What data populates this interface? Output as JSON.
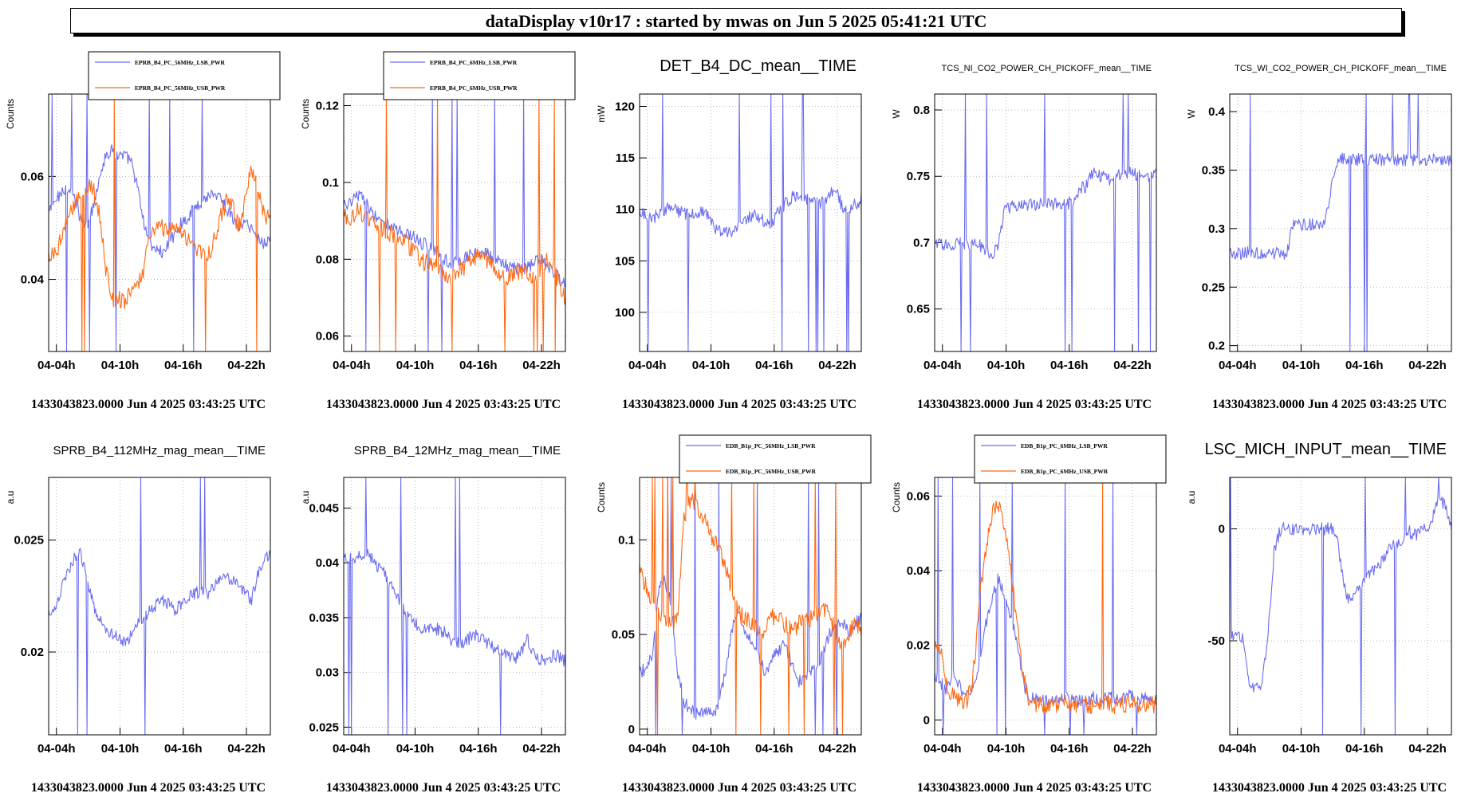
{
  "header": {
    "title": "dataDisplay v10r17 : started by mwas on Jun  5 2025 05:41:21 UTC"
  },
  "colors": {
    "blue": "#6a6cf0",
    "orange": "#ff6a12",
    "grid": "#a8a8a8",
    "axis": "#000000"
  },
  "chart_data": [
    {
      "type": "line",
      "title": "",
      "ylabel": "Counts",
      "legend": [
        "EPRB_B4_PC_56MHz_LSB_PWR",
        "EPRB_B4_PC_56MHz_USB_PWR"
      ],
      "xticks": [
        "04-04h",
        "04-10h",
        "04-16h",
        "04-22h"
      ],
      "yticks": [
        0.04,
        0.06
      ],
      "ytick_labels": [
        "0.04",
        "0.06"
      ],
      "ylim": [
        0.026,
        0.076
      ],
      "footer": "1433043823.0000 Jun 4 2025 03:43:25 UTC",
      "series": [
        {
          "color": "blue",
          "values": [
            0.053,
            0.055,
            0.057,
            0.058,
            0.056,
            0.052,
            0.05,
            0.054,
            0.06,
            0.064,
            0.065,
            0.064,
            0.064,
            0.063,
            0.058,
            0.051,
            0.047,
            0.046,
            0.045,
            0.047,
            0.049,
            0.051,
            0.052,
            0.054,
            0.055,
            0.056,
            0.057,
            0.056,
            0.054,
            0.052,
            0.05,
            0.051,
            0.05,
            0.048,
            0.047,
            0.048
          ]
        },
        {
          "color": "orange",
          "values": [
            0.045,
            0.045,
            0.048,
            0.052,
            0.054,
            0.056,
            0.058,
            0.058,
            0.053,
            0.042,
            0.036,
            0.036,
            0.036,
            0.037,
            0.039,
            0.042,
            0.048,
            0.051,
            0.05,
            0.05,
            0.05,
            0.049,
            0.048,
            0.046,
            0.045,
            0.044,
            0.047,
            0.052,
            0.055,
            0.054,
            0.05,
            0.055,
            0.062,
            0.058,
            0.053,
            0.051
          ]
        }
      ]
    },
    {
      "type": "line",
      "title": "",
      "ylabel": "Counts",
      "legend": [
        "EPRB_B4_PC_6MHz_LSB_PWR",
        "EPRB_B4_PC_6MHz_USB_PWR"
      ],
      "xticks": [
        "04-04h",
        "04-10h",
        "04-16h",
        "04-22h"
      ],
      "yticks": [
        0.06,
        0.08,
        0.1,
        0.12
      ],
      "ytick_labels": [
        "0.06",
        "0.08",
        "0.1",
        "0.12"
      ],
      "ylim": [
        0.056,
        0.123
      ],
      "footer": "1433043823.0000 Jun 4 2025 03:43:25 UTC",
      "series": [
        {
          "color": "blue",
          "values": [
            0.094,
            0.095,
            0.097,
            0.096,
            0.093,
            0.091,
            0.09,
            0.089,
            0.088,
            0.087,
            0.087,
            0.086,
            0.084,
            0.084,
            0.083,
            0.082,
            0.08,
            0.079,
            0.079,
            0.08,
            0.081,
            0.082,
            0.082,
            0.081,
            0.08,
            0.079,
            0.078,
            0.078,
            0.077,
            0.078,
            0.079,
            0.08,
            0.079,
            0.077,
            0.075,
            0.073
          ]
        },
        {
          "color": "orange",
          "values": [
            0.092,
            0.09,
            0.093,
            0.092,
            0.09,
            0.089,
            0.088,
            0.087,
            0.086,
            0.085,
            0.084,
            0.082,
            0.08,
            0.079,
            0.079,
            0.078,
            0.076,
            0.075,
            0.076,
            0.078,
            0.08,
            0.081,
            0.081,
            0.079,
            0.077,
            0.076,
            0.075,
            0.076,
            0.077,
            0.076,
            0.075,
            0.077,
            0.08,
            0.078,
            0.074,
            0.07
          ]
        }
      ]
    },
    {
      "type": "line",
      "title": "DET_B4_DC_mean__TIME",
      "ylabel": "mW",
      "legend": [],
      "xticks": [
        "04-04h",
        "04-10h",
        "04-16h",
        "04-22h"
      ],
      "yticks": [
        100,
        105,
        110,
        115,
        120
      ],
      "ytick_labels": [
        "100",
        "105",
        "110",
        "115",
        "120"
      ],
      "ylim": [
        96.2,
        121.2
      ],
      "footer": "1433043823.0000 Jun 4 2025 03:43:25 UTC",
      "series": [
        {
          "color": "blue",
          "values": [
            109.8,
            109.5,
            109.2,
            109.5,
            110.0,
            110.2,
            109.8,
            109.6,
            109.4,
            109.5,
            109.8,
            109.0,
            108.2,
            107.5,
            107.8,
            108.1,
            108.8,
            109.2,
            109.5,
            109.2,
            108.6,
            108.8,
            109.8,
            110.5,
            111.2,
            111.5,
            111.2,
            110.8,
            110.5,
            110.8,
            111.5,
            111.8,
            110.2,
            109.5,
            110.5,
            111.0
          ]
        }
      ]
    },
    {
      "type": "line",
      "title": "TCS_NI_CO2_POWER_CH_PICKOFF_mean__TIME",
      "ylabel": "W",
      "legend": [],
      "xticks": [
        "04-04h",
        "04-10h",
        "04-16h",
        "04-22h"
      ],
      "yticks": [
        0.65,
        0.7,
        0.75,
        0.8
      ],
      "ytick_labels": [
        "0.65",
        "0.7",
        "0.75",
        "0.8"
      ],
      "ylim": [
        0.618,
        0.812
      ],
      "footer": "1433043823.0000 Jun 4 2025 03:43:25 UTC",
      "series": [
        {
          "color": "blue",
          "values": [
            0.699,
            0.699,
            0.699,
            0.699,
            0.699,
            0.699,
            0.699,
            0.699,
            0.695,
            0.688,
            0.698,
            0.725,
            0.727,
            0.728,
            0.728,
            0.729,
            0.729,
            0.729,
            0.729,
            0.729,
            0.73,
            0.73,
            0.73,
            0.741,
            0.743,
            0.754,
            0.751,
            0.748,
            0.748,
            0.751,
            0.754,
            0.752,
            0.751,
            0.749,
            0.75,
            0.752
          ]
        }
      ]
    },
    {
      "type": "line",
      "title": "TCS_WI_CO2_POWER_CH_PICKOFF_mean__TIME",
      "ylabel": "W",
      "legend": [],
      "xticks": [
        "04-04h",
        "04-10h",
        "04-16h",
        "04-22h"
      ],
      "yticks": [
        0.2,
        0.25,
        0.3,
        0.35,
        0.4
      ],
      "ytick_labels": [
        "0.2",
        "0.25",
        "0.3",
        "0.35",
        "0.4"
      ],
      "ylim": [
        0.195,
        0.415
      ],
      "footer": "1433043823.0000 Jun 4 2025 03:43:25 UTC",
      "series": [
        {
          "color": "blue",
          "values": [
            0.279,
            0.279,
            0.279,
            0.279,
            0.279,
            0.279,
            0.279,
            0.279,
            0.279,
            0.279,
            0.303,
            0.303,
            0.303,
            0.303,
            0.303,
            0.303,
            0.335,
            0.359,
            0.359,
            0.359,
            0.359,
            0.359,
            0.359,
            0.359,
            0.359,
            0.359,
            0.359,
            0.359,
            0.359,
            0.359,
            0.359,
            0.359,
            0.359,
            0.359,
            0.359,
            0.359
          ]
        }
      ]
    },
    {
      "type": "line",
      "title": "SPRB_B4_112MHz_mag_mean__TIME",
      "ylabel": "a.u",
      "legend": [],
      "xticks": [
        "04-04h",
        "04-10h",
        "04-16h",
        "04-22h"
      ],
      "yticks": [
        0.02,
        0.025
      ],
      "ytick_labels": [
        "0.02",
        "0.025"
      ],
      "ylim": [
        0.0163,
        0.0278
      ],
      "footer": "1433043823.0000 Jun 4 2025 03:43:25 UTC",
      "series": [
        {
          "color": "blue",
          "values": [
            0.0218,
            0.022,
            0.0228,
            0.0236,
            0.0242,
            0.0245,
            0.0233,
            0.0222,
            0.0214,
            0.021,
            0.0208,
            0.0206,
            0.0205,
            0.0207,
            0.0212,
            0.0216,
            0.0218,
            0.0221,
            0.0223,
            0.0221,
            0.0219,
            0.0222,
            0.0225,
            0.0226,
            0.0227,
            0.0226,
            0.0228,
            0.0233,
            0.0234,
            0.0232,
            0.0229,
            0.0226,
            0.0223,
            0.0235,
            0.024,
            0.0245
          ]
        }
      ]
    },
    {
      "type": "line",
      "title": "SPRB_B4_12MHz_mag_mean__TIME",
      "ylabel": "a.u",
      "legend": [],
      "xticks": [
        "04-04h",
        "04-10h",
        "04-16h",
        "04-22h"
      ],
      "yticks": [
        0.025,
        0.03,
        0.035,
        0.04,
        0.045
      ],
      "ytick_labels": [
        "0.025",
        "0.03",
        "0.035",
        "0.04",
        "0.045"
      ],
      "ylim": [
        0.0243,
        0.0478
      ],
      "footer": "1433043823.0000 Jun 4 2025 03:43:25 UTC",
      "series": [
        {
          "color": "blue",
          "values": [
            0.0405,
            0.0404,
            0.0405,
            0.0408,
            0.0408,
            0.04,
            0.0393,
            0.0385,
            0.0375,
            0.0362,
            0.0352,
            0.0345,
            0.0342,
            0.034,
            0.0338,
            0.034,
            0.0336,
            0.033,
            0.0326,
            0.0328,
            0.0332,
            0.0334,
            0.033,
            0.0326,
            0.0322,
            0.0318,
            0.0315,
            0.0312,
            0.032,
            0.033,
            0.0318,
            0.031,
            0.0312,
            0.0315,
            0.0315,
            0.031
          ]
        }
      ]
    },
    {
      "type": "line",
      "title": "",
      "ylabel": "Counts",
      "legend": [
        "EDB_B1p_PC_56MHz_LSB_PWR",
        "EDB_B1p_PC_56MHz_USB_PWR"
      ],
      "xticks": [
        "04-04h",
        "04-10h",
        "04-16h",
        "04-22h"
      ],
      "yticks": [
        0,
        0.05,
        0.1
      ],
      "ytick_labels": [
        "0",
        "0.05",
        "0.1"
      ],
      "ylim": [
        -0.003,
        0.133
      ],
      "footer": "1433043823.0000 Jun 4 2025 03:43:25 UTC",
      "series": [
        {
          "color": "blue",
          "values": [
            0.03,
            0.032,
            0.04,
            0.075,
            0.08,
            0.065,
            0.03,
            0.015,
            0.01,
            0.008,
            0.008,
            0.009,
            0.01,
            0.02,
            0.04,
            0.06,
            0.058,
            0.05,
            0.045,
            0.035,
            0.03,
            0.04,
            0.042,
            0.045,
            0.035,
            0.025,
            0.028,
            0.03,
            0.032,
            0.04,
            0.05,
            0.055,
            0.058,
            0.05,
            0.055,
            0.06
          ]
        },
        {
          "color": "orange",
          "values": [
            0.085,
            0.075,
            0.068,
            0.062,
            0.058,
            0.055,
            0.06,
            0.11,
            0.122,
            0.118,
            0.112,
            0.105,
            0.098,
            0.09,
            0.08,
            0.07,
            0.06,
            0.058,
            0.055,
            0.05,
            0.055,
            0.06,
            0.058,
            0.055,
            0.052,
            0.055,
            0.06,
            0.058,
            0.062,
            0.065,
            0.06,
            0.05,
            0.045,
            0.05,
            0.055,
            0.052
          ]
        }
      ]
    },
    {
      "type": "line",
      "title": "",
      "ylabel": "Counts",
      "legend": [
        "EDB_B1p_PC_6MHz_LSB_PWR",
        "EDB_B1p_PC_6MHz_USB_PWR"
      ],
      "xticks": [
        "04-04h",
        "04-10h",
        "04-16h",
        "04-22h"
      ],
      "yticks": [
        0,
        0.02,
        0.04,
        0.06
      ],
      "ytick_labels": [
        "0",
        "0.02",
        "0.04",
        "0.06"
      ],
      "ylim": [
        -0.004,
        0.065
      ],
      "footer": "1433043823.0000 Jun 4 2025 03:43:25 UTC",
      "series": [
        {
          "color": "blue",
          "values": [
            0.012,
            0.01,
            0.008,
            0.012,
            0.009,
            0.006,
            0.008,
            0.015,
            0.025,
            0.032,
            0.038,
            0.034,
            0.028,
            0.02,
            0.01,
            0.006,
            0.006,
            0.005,
            0.005,
            0.005,
            0.006,
            0.006,
            0.005,
            0.005,
            0.005,
            0.006,
            0.005,
            0.006,
            0.006,
            0.005,
            0.006,
            0.007,
            0.005,
            0.006,
            0.005,
            0.005
          ]
        },
        {
          "color": "orange",
          "values": [
            0.02,
            0.018,
            0.008,
            0.006,
            0.005,
            0.005,
            0.01,
            0.03,
            0.045,
            0.055,
            0.058,
            0.052,
            0.04,
            0.025,
            0.012,
            0.005,
            0.004,
            0.004,
            0.004,
            0.004,
            0.005,
            0.005,
            0.004,
            0.004,
            0.004,
            0.004,
            0.004,
            0.005,
            0.004,
            0.004,
            0.004,
            0.005,
            0.004,
            0.004,
            0.004,
            0.004
          ]
        }
      ]
    },
    {
      "type": "line",
      "title": "LSC_MICH_INPUT_mean__TIME",
      "ylabel": "a.u",
      "legend": [],
      "xticks": [
        "04-04h",
        "04-10h",
        "04-16h",
        "04-22h"
      ],
      "yticks": [
        -50,
        0
      ],
      "ytick_labels": [
        "-50",
        "0"
      ],
      "ylim": [
        -92,
        23
      ],
      "footer": "1433043823.0000 Jun 4 2025 03:43:25 UTC",
      "series": [
        {
          "color": "blue",
          "values": [
            -48,
            -48,
            -48,
            -70,
            -70,
            -70,
            -50,
            -10,
            0,
            0,
            0,
            0,
            0,
            0,
            0,
            0,
            0,
            -5,
            -25,
            -33,
            -28,
            -24,
            -20,
            -18,
            -15,
            -10,
            -6,
            -8,
            0,
            -3,
            -2,
            0,
            5,
            12,
            12,
            0
          ]
        }
      ]
    }
  ]
}
